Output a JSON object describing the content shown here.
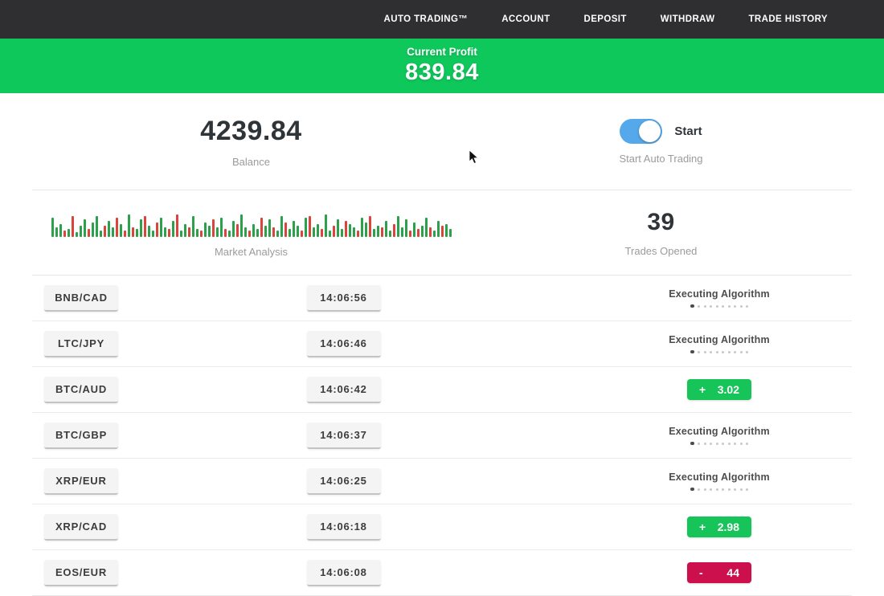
{
  "navbar": {
    "items": [
      {
        "id": "auto-trading",
        "label": "AUTO TRADING™"
      },
      {
        "id": "account",
        "label": "ACCOUNT"
      },
      {
        "id": "deposit",
        "label": "DEPOSIT"
      },
      {
        "id": "withdraw",
        "label": "WITHDRAW"
      },
      {
        "id": "trade-history",
        "label": "TRADE HISTORY"
      }
    ]
  },
  "profit_banner": {
    "label": "Current Profit",
    "value": "839.84"
  },
  "stats": {
    "balance": {
      "value": "4239.84",
      "label": "Balance"
    },
    "auto_trading": {
      "toggle_state": "on",
      "toggle_label": "Start",
      "label": "Start Auto Trading"
    },
    "market_analysis": {
      "label": "Market Analysis"
    },
    "trades_opened": {
      "value": "39",
      "label": "Trades Opened"
    }
  },
  "chart_data": {
    "type": "bar",
    "title": "Market Analysis",
    "xlabel": "",
    "ylabel": "",
    "note": "decorative mini candlestick/volume strip; values are relative bar heights in px, prefix g=green up-tick, r=red down-tick",
    "bars": [
      "g24",
      "g12",
      "g16",
      "r8",
      "g10",
      "r26",
      "g6",
      "g14",
      "g22",
      "r10",
      "g18",
      "g26",
      "g8",
      "r14",
      "g20",
      "g12",
      "r24",
      "g16",
      "r8",
      "g28",
      "r12",
      "g10",
      "g22",
      "r26",
      "g14",
      "g8",
      "r18",
      "g24",
      "g12",
      "r10",
      "g20",
      "r28",
      "g8",
      "g16",
      "r12",
      "g26",
      "g10",
      "r8",
      "g18",
      "g14",
      "r22",
      "g12",
      "g24",
      "r10",
      "g8",
      "g20",
      "r16",
      "g28",
      "g12",
      "r8",
      "g16",
      "g10",
      "r24",
      "g14",
      "g22",
      "r12",
      "g8",
      "g26",
      "r18",
      "g10",
      "g20",
      "g14",
      "r8",
      "g24",
      "r26",
      "g12",
      "g16",
      "r10",
      "g28",
      "g8",
      "r14",
      "g22",
      "g10",
      "r20",
      "g16",
      "g12",
      "r8",
      "g24",
      "g18",
      "r26",
      "g10",
      "g14",
      "r12",
      "g20",
      "g8",
      "r16",
      "g26",
      "g12",
      "g22",
      "r8",
      "g18",
      "r10",
      "g14",
      "g24",
      "r12",
      "g8",
      "g20",
      "r14",
      "g16",
      "g10"
    ]
  },
  "labels": {
    "executing": "Executing Algorithm"
  },
  "trades": [
    {
      "pair": "BNB/CAD",
      "time": "14:06:56",
      "status": "executing"
    },
    {
      "pair": "LTC/JPY",
      "time": "14:06:46",
      "status": "executing"
    },
    {
      "pair": "BTC/AUD",
      "time": "14:06:42",
      "status": "profit",
      "sign": "+",
      "value": "3.02"
    },
    {
      "pair": "BTC/GBP",
      "time": "14:06:37",
      "status": "executing"
    },
    {
      "pair": "XRP/EUR",
      "time": "14:06:25",
      "status": "executing"
    },
    {
      "pair": "XRP/CAD",
      "time": "14:06:18",
      "status": "profit",
      "sign": "+",
      "value": "2.98"
    },
    {
      "pair": "EOS/EUR",
      "time": "14:06:08",
      "status": "loss",
      "sign": "-",
      "value": "44"
    }
  ],
  "colors": {
    "navbar_bg": "#2f2f31",
    "banner_green": "#0fc85c",
    "badge_green": "#16c45a",
    "badge_red": "#cc0f4d",
    "toggle_blue": "#55a9ea",
    "bar_green": "#2da04b",
    "bar_red": "#d9453c"
  }
}
